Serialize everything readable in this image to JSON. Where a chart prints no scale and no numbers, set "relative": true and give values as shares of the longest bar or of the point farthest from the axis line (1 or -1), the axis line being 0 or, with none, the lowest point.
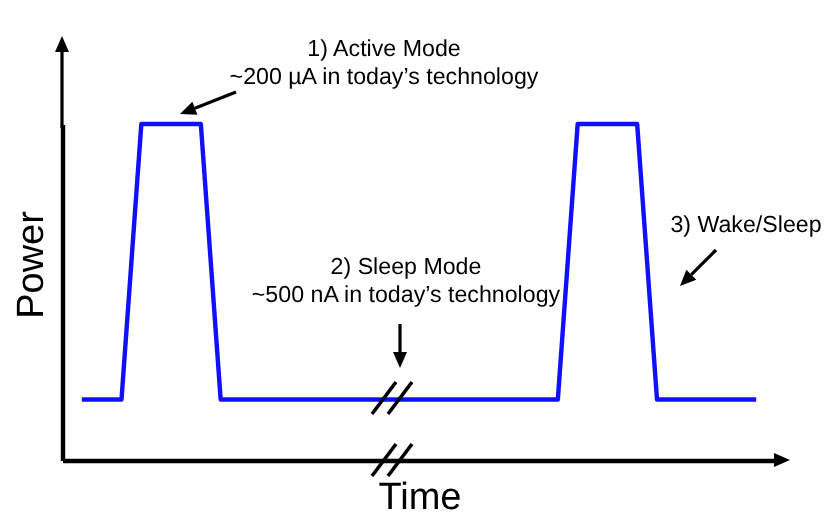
{
  "chart_data": {
    "type": "line",
    "relative": true,
    "xlabel": "Time",
    "ylabel": "Power",
    "tick_labels": false,
    "color": "#1010ff",
    "categories": [
      null,
      null,
      null,
      null,
      null,
      null,
      null,
      null,
      null,
      null,
      null,
      null,
      null,
      null,
      null,
      null,
      null,
      null,
      null,
      null,
      null,
      null,
      null,
      null,
      null,
      null,
      null,
      null,
      null,
      null,
      null,
      null,
      null,
      null,
      null
    ],
    "values": [
      0.18,
      0.18,
      0.18,
      1,
      1,
      1,
      1,
      0.18,
      0.18,
      0.18,
      0.18,
      0.18,
      0.18,
      0.18,
      0.18,
      0.18,
      0.18,
      0.18,
      0.18,
      0.18,
      0.18,
      0.18,
      0.18,
      0.18,
      0.18,
      1,
      1,
      1,
      1,
      0.18,
      0.18,
      0.18,
      0.18,
      0.18,
      0.18
    ],
    "annotations": [
      "1) Active Mode",
      "~200 µA in today’s technology",
      "2) Sleep Mode",
      "~500 nA in today’s technology",
      "3) Wake/Sleep"
    ]
  }
}
